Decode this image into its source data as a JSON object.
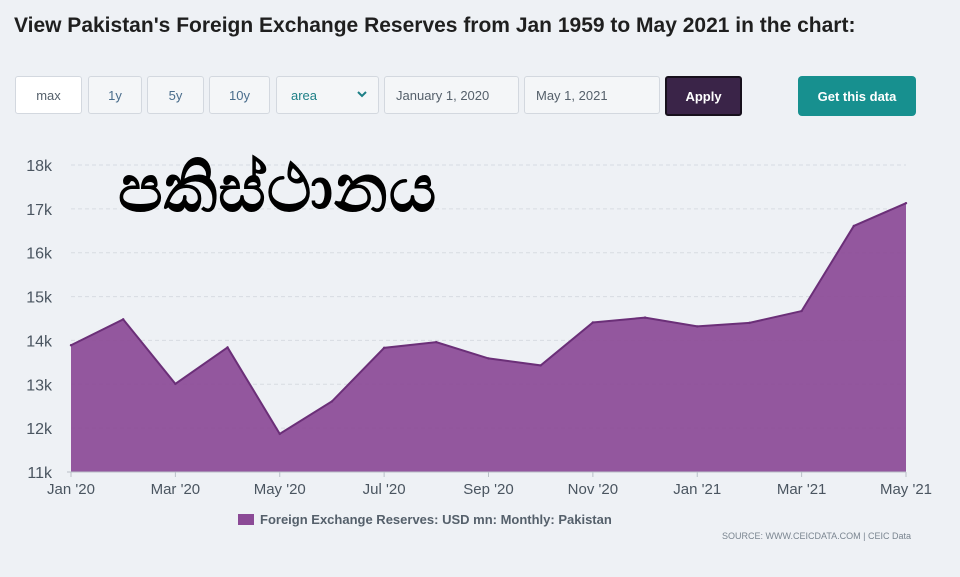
{
  "page": {
    "title": "View Pakistan's Foreign Exchange Reserves from Jan 1959 to May 2021 in the chart:"
  },
  "toolbar": {
    "range_buttons": [
      "max",
      "1y",
      "5y",
      "10y"
    ],
    "active_range": "max",
    "chart_type_selected": "area",
    "start_date": "January 1, 2020",
    "end_date": "May 1, 2021",
    "apply_label": "Apply",
    "get_data_label": "Get this data",
    "colors": {
      "apply_bg": "#3a2448",
      "get_data_bg": "#17908f"
    }
  },
  "overlay": {
    "text": "පකිස්ථානය"
  },
  "legend": {
    "label": "Foreign Exchange Reserves: USD mn: Monthly: Pakistan"
  },
  "source": {
    "text": "SOURCE: WWW.CEICDATA.COM | CEIC Data"
  },
  "chart_data": {
    "type": "area",
    "title": "",
    "xlabel": "",
    "ylabel": "",
    "ylim": [
      11000,
      18000
    ],
    "grid": true,
    "legend_position": "bottom",
    "color": "#8b4a96",
    "yticks": [
      "11k",
      "12k",
      "13k",
      "14k",
      "15k",
      "16k",
      "17k",
      "18k"
    ],
    "xtick_labels": [
      "Jan '20",
      "Mar '20",
      "May '20",
      "Jul '20",
      "Sep '20",
      "Nov '20",
      "Jan '21",
      "Mar '21",
      "May '21"
    ],
    "x": [
      "2020-01",
      "2020-02",
      "2020-03",
      "2020-04",
      "2020-05",
      "2020-06",
      "2020-07",
      "2020-08",
      "2020-09",
      "2020-10",
      "2020-11",
      "2020-12",
      "2021-01",
      "2021-02",
      "2021-03",
      "2021-04",
      "2021-05"
    ],
    "series": [
      {
        "name": "Foreign Exchange Reserves: USD mn: Monthly: Pakistan",
        "values": [
          13890,
          14480,
          13010,
          13840,
          11870,
          12610,
          13830,
          13960,
          13590,
          13430,
          14410,
          14520,
          14320,
          14400,
          14670,
          16610,
          17130
        ]
      }
    ]
  }
}
